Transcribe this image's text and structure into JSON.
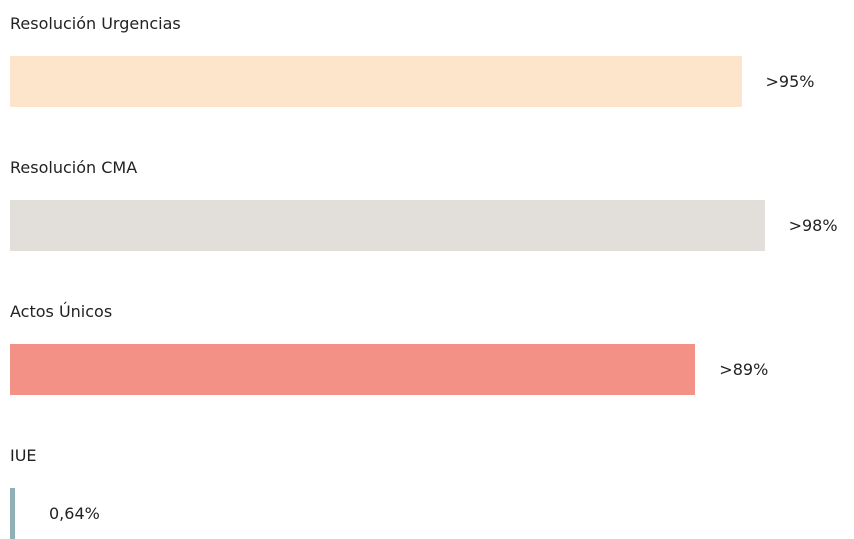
{
  "chart_data": {
    "type": "bar",
    "categories": [
      "Resolución Urgencias",
      "Resolución CMA",
      "Actos Únicos",
      "IUE"
    ],
    "values": [
      95,
      98,
      89,
      0.64
    ],
    "value_labels": [
      ">95%",
      ">98%",
      ">89%",
      "0,64%"
    ],
    "colors": [
      "#fde5cb",
      "#e2dfda",
      "#f39187",
      "#8fb0b5"
    ]
  }
}
